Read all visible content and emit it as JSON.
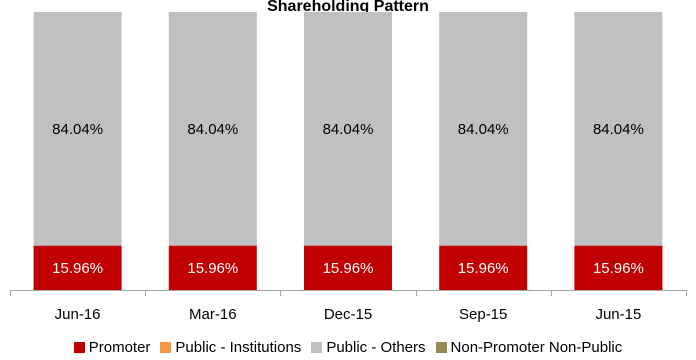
{
  "chart_data": {
    "type": "bar",
    "stacked": true,
    "title": "Shareholding Pattern",
    "categories": [
      "Jun-16",
      "Mar-16",
      "Dec-15",
      "Sep-15",
      "Jun-15"
    ],
    "series": [
      {
        "name": "Promoter",
        "color": "#c00000",
        "label_color": "#ffffff",
        "values": [
          15.96,
          15.96,
          15.96,
          15.96,
          15.96
        ],
        "labels": [
          "15.96%",
          "15.96%",
          "15.96%",
          "15.96%",
          "15.96%"
        ]
      },
      {
        "name": "Public - Institutions",
        "color": "#f79646",
        "label_color": "#000000",
        "values": [
          0,
          0,
          0,
          0,
          0
        ],
        "labels": [
          "",
          "",
          "",
          "",
          ""
        ]
      },
      {
        "name": "Public - Others",
        "color": "#c0c0c0",
        "label_color": "#000000",
        "values": [
          84.04,
          84.04,
          84.04,
          84.04,
          84.04
        ],
        "labels": [
          "84.04%",
          "84.04%",
          "84.04%",
          "84.04%",
          "84.04%"
        ]
      },
      {
        "name": "Non-Promoter Non-Public",
        "color": "#948a54",
        "label_color": "#000000",
        "values": [
          0,
          0,
          0,
          0,
          0
        ],
        "labels": [
          "",
          "",
          "",
          "",
          ""
        ]
      }
    ],
    "ylim": [
      0,
      100
    ],
    "grid": false,
    "legend_position": "bottom"
  }
}
